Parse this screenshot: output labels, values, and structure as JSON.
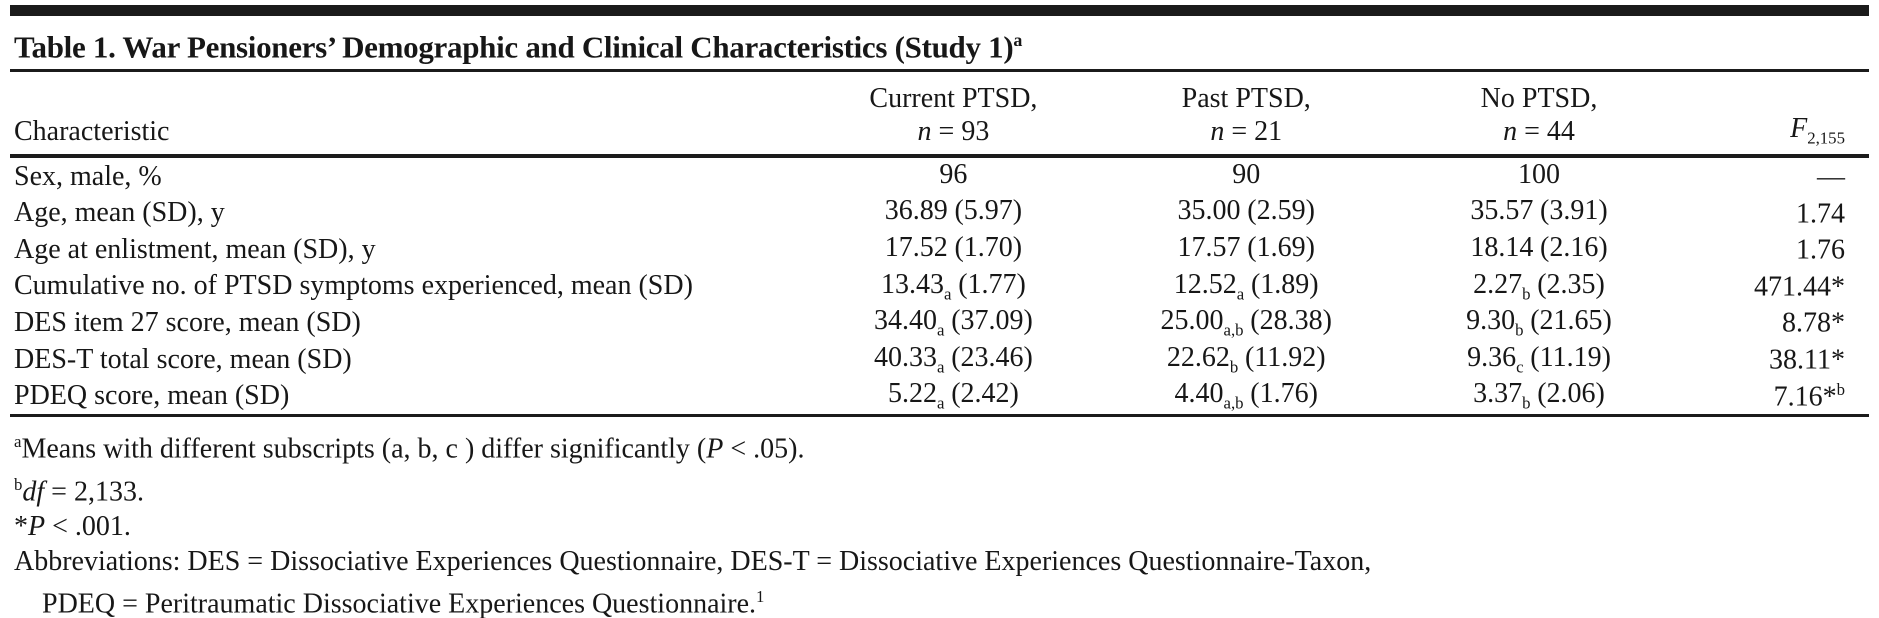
{
  "title": {
    "text": "Table 1. War Pensioners’ Demographic and Clinical Characteristics (Study 1)",
    "note": "a"
  },
  "header": {
    "characteristic": "Characteristic",
    "groups": [
      {
        "line1": "Current PTSD,",
        "n_symbol": "n",
        "n_value": " = 93"
      },
      {
        "line1": "Past PTSD,",
        "n_symbol": "n",
        "n_value": " = 21"
      },
      {
        "line1": "No PTSD,",
        "n_symbol": "n",
        "n_value": " = 44"
      }
    ],
    "f": {
      "symbol": "F",
      "sub": "2,155"
    }
  },
  "table": {
    "rows": [
      {
        "label": "Sex, male, %",
        "current": {
          "v": "96",
          "sub": "",
          "sd": ""
        },
        "past": {
          "v": "90",
          "sub": "",
          "sd": ""
        },
        "no": {
          "v": "100",
          "sub": "",
          "sd": ""
        },
        "f": {
          "v": "—",
          "star": "",
          "sup": ""
        }
      },
      {
        "label": "Age, mean (SD), y",
        "current": {
          "v": "36.89",
          "sub": "",
          "sd": "(5.97)"
        },
        "past": {
          "v": "35.00",
          "sub": "",
          "sd": "(2.59)"
        },
        "no": {
          "v": "35.57",
          "sub": "",
          "sd": "(3.91)"
        },
        "f": {
          "v": "1.74",
          "star": "",
          "sup": ""
        }
      },
      {
        "label": "Age at enlistment, mean (SD), y",
        "current": {
          "v": "17.52",
          "sub": "",
          "sd": "(1.70)"
        },
        "past": {
          "v": "17.57",
          "sub": "",
          "sd": "(1.69)"
        },
        "no": {
          "v": "18.14",
          "sub": "",
          "sd": "(2.16)"
        },
        "f": {
          "v": "1.76",
          "star": "",
          "sup": ""
        }
      },
      {
        "label": "Cumulative no. of PTSD symptoms experienced, mean (SD)",
        "current": {
          "v": "13.43",
          "sub": "a",
          "sd": "(1.77)"
        },
        "past": {
          "v": "12.52",
          "sub": "a",
          "sd": "(1.89)"
        },
        "no": {
          "v": "2.27",
          "sub": "b",
          "sd": "(2.35)"
        },
        "f": {
          "v": "471.44",
          "star": "*",
          "sup": ""
        }
      },
      {
        "label": "DES item 27 score, mean (SD)",
        "current": {
          "v": "34.40",
          "sub": "a",
          "sd": "(37.09)"
        },
        "past": {
          "v": "25.00",
          "sub": "a,b",
          "sd": "(28.38)"
        },
        "no": {
          "v": "9.30",
          "sub": "b",
          "sd": "(21.65)"
        },
        "f": {
          "v": "8.78",
          "star": "*",
          "sup": ""
        }
      },
      {
        "label": "DES-T total score, mean (SD)",
        "current": {
          "v": "40.33",
          "sub": "a",
          "sd": "(23.46)"
        },
        "past": {
          "v": "22.62",
          "sub": "b",
          "sd": "(11.92)"
        },
        "no": {
          "v": "9.36",
          "sub": "c",
          "sd": "(11.19)"
        },
        "f": {
          "v": "38.11",
          "star": "*",
          "sup": ""
        }
      },
      {
        "label": "PDEQ score, mean (SD)",
        "current": {
          "v": "5.22",
          "sub": "a",
          "sd": "(2.42)"
        },
        "past": {
          "v": "4.40",
          "sub": "a,b",
          "sd": "(1.76)"
        },
        "no": {
          "v": "3.37",
          "sub": "b",
          "sd": "(2.06)"
        },
        "f": {
          "v": "7.16",
          "star": "*",
          "sup": "b"
        }
      }
    ]
  },
  "footnotes": {
    "a": {
      "sup": "a",
      "pre": "Means with different subscripts (a, b, c ) differ significantly (",
      "it": "P",
      "post": " < .05)."
    },
    "b": {
      "sup": "b",
      "it": "df",
      "post": " = 2,133."
    },
    "star": {
      "pre": "*",
      "it": "P",
      "post": " < .001."
    },
    "abbrev_line1": "Abbreviations: DES = Dissociative Experiences Questionnaire, DES-T = Dissociative Experiences Questionnaire-Taxon,",
    "abbrev_line2": "PDEQ = Peritraumatic Dissociative Experiences Questionnaire.",
    "abbrev_ref": "1"
  },
  "colors": {
    "text": "#171717",
    "rule": "#1b1b1b",
    "background": "#ffffff"
  }
}
